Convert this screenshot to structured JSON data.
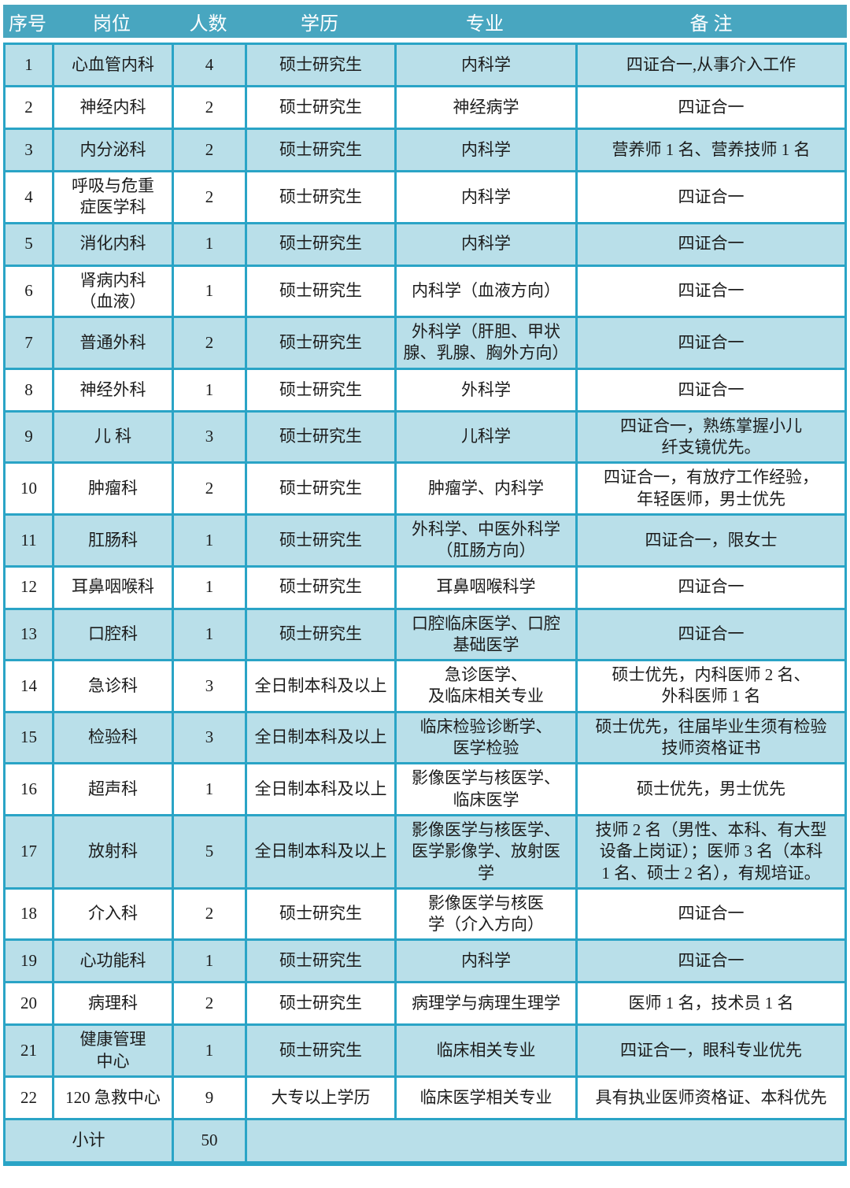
{
  "table": {
    "headers": [
      "序号",
      "岗位",
      "人数",
      "学历",
      "专业",
      "备 注"
    ],
    "rows": [
      [
        "1",
        "心血管内科",
        "4",
        "硕士研究生",
        "内科学",
        "四证合一,从事介入工作"
      ],
      [
        "2",
        "神经内科",
        "2",
        "硕士研究生",
        "神经病学",
        "四证合一"
      ],
      [
        "3",
        "内分泌科",
        "2",
        "硕士研究生",
        "内科学",
        "营养师 1 名、营养技师 1 名"
      ],
      [
        "4",
        "呼吸与危重\n症医学科",
        "2",
        "硕士研究生",
        "内科学",
        "四证合一"
      ],
      [
        "5",
        "消化内科",
        "1",
        "硕士研究生",
        "内科学",
        "四证合一"
      ],
      [
        "6",
        "肾病内科\n（血液）",
        "1",
        "硕士研究生",
        "内科学（血液方向）",
        "四证合一"
      ],
      [
        "7",
        "普通外科",
        "2",
        "硕士研究生",
        "外科学（肝胆、甲状\n腺、乳腺、胸外方向）",
        "四证合一"
      ],
      [
        "8",
        "神经外科",
        "1",
        "硕士研究生",
        "外科学",
        "四证合一"
      ],
      [
        "9",
        "儿 科",
        "3",
        "硕士研究生",
        "儿科学",
        "四证合一，熟练掌握小儿\n纤支镜优先。"
      ],
      [
        "10",
        "肿瘤科",
        "2",
        "硕士研究生",
        "肿瘤学、内科学",
        "四证合一，有放疗工作经验，\n年轻医师，男士优先"
      ],
      [
        "11",
        "肛肠科",
        "1",
        "硕士研究生",
        "外科学、中医外科学\n（肛肠方向）",
        "四证合一，限女士"
      ],
      [
        "12",
        "耳鼻咽喉科",
        "1",
        "硕士研究生",
        "耳鼻咽喉科学",
        "四证合一"
      ],
      [
        "13",
        "口腔科",
        "1",
        "硕士研究生",
        "口腔临床医学、口腔\n基础医学",
        "四证合一"
      ],
      [
        "14",
        "急诊科",
        "3",
        "全日制本科及以上",
        "急诊医学、\n及临床相关专业",
        "硕士优先，内科医师 2 名、\n外科医师 1 名"
      ],
      [
        "15",
        "检验科",
        "3",
        "全日制本科及以上",
        "临床检验诊断学、\n医学检验",
        "硕士优先，往届毕业生须有检验\n技师资格证书"
      ],
      [
        "16",
        "超声科",
        "1",
        "全日制本科及以上",
        "影像医学与核医学、\n临床医学",
        "硕士优先，男士优先"
      ],
      [
        "17",
        "放射科",
        "5",
        "全日制本科及以上",
        "影像医学与核医学、\n医学影像学、放射医\n学",
        "技师 2 名（男性、本科、有大型\n设备上岗证）；医师 3 名（本科\n1 名、硕士 2 名），有规培证。"
      ],
      [
        "18",
        "介入科",
        "2",
        "硕士研究生",
        "影像医学与核医\n学（介入方向）",
        "四证合一"
      ],
      [
        "19",
        "心功能科",
        "1",
        "硕士研究生",
        "内科学",
        "四证合一"
      ],
      [
        "20",
        "病理科",
        "2",
        "硕士研究生",
        "病理学与病理生理学",
        "医师 1 名，技术员 1 名"
      ],
      [
        "21",
        "健康管理\n中心",
        "1",
        "硕士研究生",
        "临床相关专业",
        "四证合一，眼科专业优先"
      ],
      [
        "22",
        "120 急救中心",
        "9",
        "大专以上学历",
        "临床医学相关专业",
        "具有执业医师资格证、本科优先"
      ]
    ],
    "footer": {
      "label": "小计",
      "total": "50"
    }
  },
  "colors": {
    "header_bg": "#48a6c0",
    "alt_row_bg": "#b9dfe9",
    "border": "#2aa4c6",
    "header_text": "#ffffff",
    "text": "#1c1c1c"
  }
}
